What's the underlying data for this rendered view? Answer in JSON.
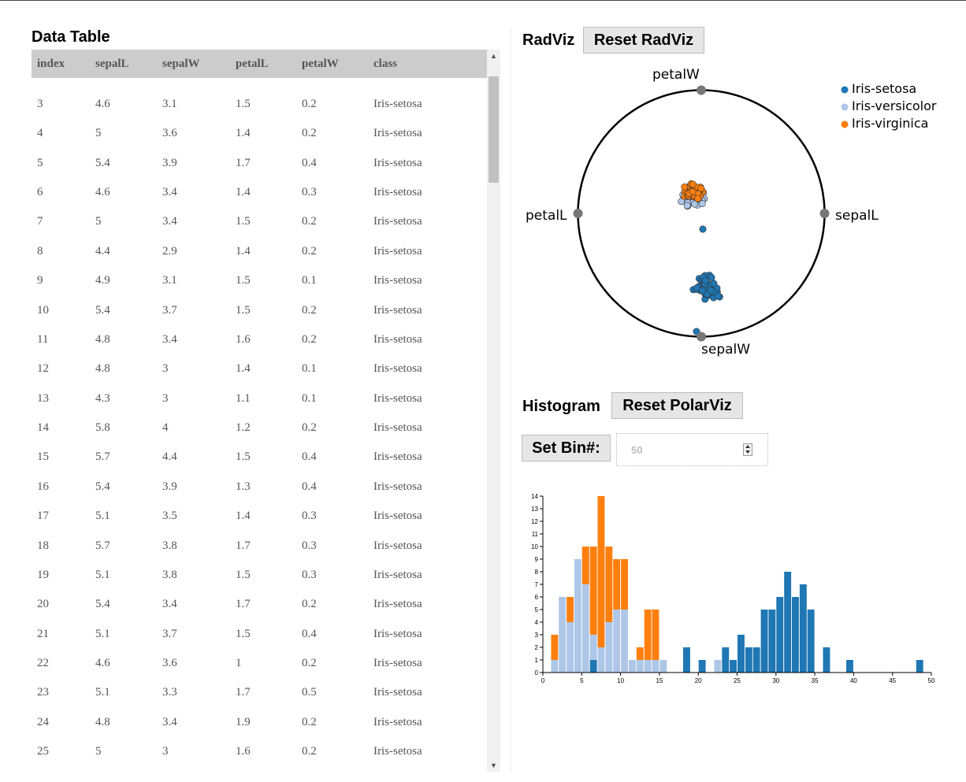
{
  "data_table": {
    "title": "Data Table",
    "columns": [
      "index",
      "sepalL",
      "sepalW",
      "petalL",
      "petalW",
      "class"
    ],
    "rows": [
      [
        "3",
        "4.6",
        "3.1",
        "1.5",
        "0.2",
        "Iris-setosa"
      ],
      [
        "4",
        "5",
        "3.6",
        "1.4",
        "0.2",
        "Iris-setosa"
      ],
      [
        "5",
        "5.4",
        "3.9",
        "1.7",
        "0.4",
        "Iris-setosa"
      ],
      [
        "6",
        "4.6",
        "3.4",
        "1.4",
        "0.3",
        "Iris-setosa"
      ],
      [
        "7",
        "5",
        "3.4",
        "1.5",
        "0.2",
        "Iris-setosa"
      ],
      [
        "8",
        "4.4",
        "2.9",
        "1.4",
        "0.2",
        "Iris-setosa"
      ],
      [
        "9",
        "4.9",
        "3.1",
        "1.5",
        "0.1",
        "Iris-setosa"
      ],
      [
        "10",
        "5.4",
        "3.7",
        "1.5",
        "0.2",
        "Iris-setosa"
      ],
      [
        "11",
        "4.8",
        "3.4",
        "1.6",
        "0.2",
        "Iris-setosa"
      ],
      [
        "12",
        "4.8",
        "3",
        "1.4",
        "0.1",
        "Iris-setosa"
      ],
      [
        "13",
        "4.3",
        "3",
        "1.1",
        "0.1",
        "Iris-setosa"
      ],
      [
        "14",
        "5.8",
        "4",
        "1.2",
        "0.2",
        "Iris-setosa"
      ],
      [
        "15",
        "5.7",
        "4.4",
        "1.5",
        "0.4",
        "Iris-setosa"
      ],
      [
        "16",
        "5.4",
        "3.9",
        "1.3",
        "0.4",
        "Iris-setosa"
      ],
      [
        "17",
        "5.1",
        "3.5",
        "1.4",
        "0.3",
        "Iris-setosa"
      ],
      [
        "18",
        "5.7",
        "3.8",
        "1.7",
        "0.3",
        "Iris-setosa"
      ],
      [
        "19",
        "5.1",
        "3.8",
        "1.5",
        "0.3",
        "Iris-setosa"
      ],
      [
        "20",
        "5.4",
        "3.4",
        "1.7",
        "0.2",
        "Iris-setosa"
      ],
      [
        "21",
        "5.1",
        "3.7",
        "1.5",
        "0.4",
        "Iris-setosa"
      ],
      [
        "22",
        "4.6",
        "3.6",
        "1",
        "0.2",
        "Iris-setosa"
      ],
      [
        "23",
        "5.1",
        "3.3",
        "1.7",
        "0.5",
        "Iris-setosa"
      ],
      [
        "24",
        "4.8",
        "3.4",
        "1.9",
        "0.2",
        "Iris-setosa"
      ],
      [
        "25",
        "5",
        "3",
        "1.6",
        "0.2",
        "Iris-setosa"
      ]
    ]
  },
  "radviz": {
    "title": "RadViz",
    "reset_label": "Reset RadViz",
    "anchors": [
      "petalW",
      "sepalL",
      "sepalW",
      "petalL"
    ],
    "legend": [
      "Iris-setosa",
      "Iris-versicolor",
      "Iris-virginica"
    ],
    "colors": {
      "Iris-setosa": "#1f77b4",
      "Iris-versicolor": "#aec7e8",
      "Iris-virginica": "#ff7f0e",
      "anchor": "#777777"
    }
  },
  "histogram": {
    "title": "Histogram",
    "reset_label": "Reset PolarViz",
    "setbin_label": "Set Bin#:",
    "bin_value": "50"
  },
  "chart_data": {
    "type": "bar",
    "stacked": true,
    "xlim": [
      0,
      50
    ],
    "ylim": [
      0,
      14
    ],
    "xticks": [
      0,
      5,
      10,
      15,
      20,
      25,
      30,
      35,
      40,
      45,
      50
    ],
    "yticks": [
      0,
      1,
      2,
      3,
      4,
      5,
      6,
      7,
      8,
      9,
      10,
      11,
      12,
      13,
      14
    ],
    "bin_width": 1,
    "bin_starts": [
      1,
      2,
      3,
      4,
      5,
      6,
      7,
      8,
      9,
      10,
      11,
      12,
      13,
      14,
      15,
      18,
      20,
      22,
      23,
      24,
      25,
      26,
      27,
      28,
      29,
      30,
      31,
      32,
      33,
      34,
      36,
      39,
      48
    ],
    "series": [
      {
        "name": "Iris-setosa",
        "color": "#1f77b4",
        "values": [
          0,
          0,
          0,
          0,
          0,
          1,
          0,
          0,
          0,
          0,
          0,
          0,
          0,
          0,
          0,
          2,
          1,
          0,
          2,
          1,
          3,
          2,
          2,
          5,
          5,
          6,
          8,
          6,
          7,
          5,
          2,
          1,
          1
        ]
      },
      {
        "name": "Iris-versicolor",
        "color": "#aec7e8",
        "values": [
          1,
          6,
          4,
          9,
          7,
          2,
          2,
          4,
          5,
          5,
          1,
          1,
          1,
          1,
          1,
          0,
          0,
          1,
          0,
          0,
          0,
          0,
          0,
          0,
          0,
          0,
          0,
          0,
          0,
          0,
          0,
          0,
          0
        ]
      },
      {
        "name": "Iris-virginica",
        "color": "#ff7f0e",
        "values": [
          2,
          0,
          2,
          0,
          3,
          7,
          12,
          6,
          4,
          4,
          0,
          1,
          4,
          4,
          0,
          0,
          0,
          0,
          0,
          0,
          0,
          0,
          0,
          0,
          0,
          0,
          0,
          0,
          0,
          0,
          0,
          0,
          0
        ]
      }
    ]
  }
}
